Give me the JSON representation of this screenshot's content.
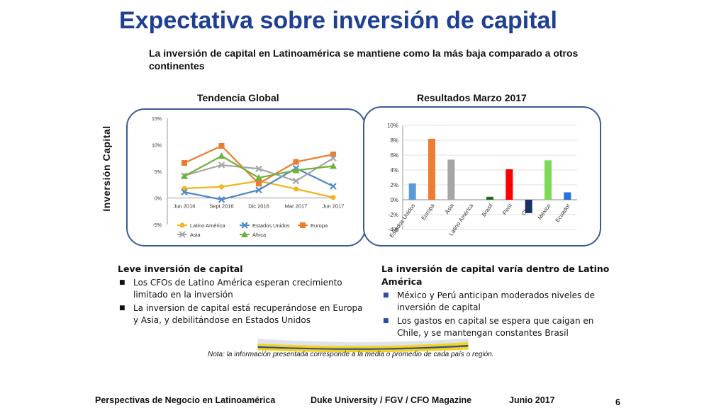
{
  "slide": {
    "title": "Expectativa sobre inversión de capital",
    "subtitle": "La inversión de capital en Latinoamérica se mantiene como la más baja comparado a otros continentes",
    "y_axis_label": "Inversión Capital",
    "note": "Nota: la información presentada corresponde a la media o promedio de cada país o región.",
    "footer": {
      "left": "Perspectivas de Negocio en Latinoamérica",
      "center": "Duke University / FGV / CFO Magazine",
      "date": "Junio 2017",
      "page": "6"
    }
  },
  "left_column": {
    "heading": "Leve inversión de capital",
    "bullets": [
      "Los CFOs de Latino América esperan crecimiento limitado en la inversión",
      "La inversion de capital está recuperándose en Europa y Asia, y debilitándose en Estados Unidos"
    ]
  },
  "right_column": {
    "heading": "La inversión de capital varía dentro de Latino América",
    "bullets": [
      "México y Perú anticipan moderados niveles de inversión de capital",
      "Los gastos en capital se espera que caigan en Chile, y se mantengan constantes Brasil"
    ]
  },
  "colors": {
    "title": "#1f3f93",
    "panel_border": "#3a5c95",
    "footer_yellow": "#f5d21c",
    "footer_blue": "#2b4f9e"
  },
  "chart_data": [
    {
      "type": "line",
      "title": "Tendencia Global",
      "categories": [
        "Jun 2016",
        "Sept 2016",
        "Dic 2016",
        "Mar 2017",
        "Jun 2017"
      ],
      "yticks": [
        "15%",
        "10%",
        "5%",
        "0%",
        "-5%"
      ],
      "ylim": [
        -5,
        15
      ],
      "legend_position": "bottom",
      "series": [
        {
          "name": "Latino América",
          "color": "#f2b51c",
          "marker": "circle",
          "values": [
            1.8,
            2.1,
            3.2,
            1.7,
            0.1
          ]
        },
        {
          "name": "Estados Unidos",
          "color": "#4c88c8",
          "marker": "x",
          "values": [
            1.1,
            -0.3,
            1.5,
            5.6,
            2.2
          ]
        },
        {
          "name": "Europa",
          "color": "#ec7c30",
          "marker": "square",
          "values": [
            6.6,
            9.8,
            2.7,
            6.8,
            8.2
          ]
        },
        {
          "name": "Asia",
          "color": "#a5a5a5",
          "marker": "x",
          "values": [
            4.2,
            6.2,
            5.5,
            3.2,
            7.5
          ]
        },
        {
          "name": "África",
          "color": "#6fb23b",
          "marker": "triangle",
          "values": [
            4.1,
            7.9,
            3.8,
            5.2,
            6.0
          ]
        }
      ]
    },
    {
      "type": "bar",
      "title": "Resultados Marzo 2017",
      "categories": [
        "Estados Unidos",
        "Europa",
        "Asia",
        "Latino América",
        "Brasil",
        "Perú",
        "Chile",
        "México",
        "Ecuador"
      ],
      "values": [
        2.2,
        8.2,
        5.4,
        0.0,
        0.4,
        4.1,
        -1.8,
        5.3,
        1.0
      ],
      "colors": [
        "#5b9bd5",
        "#ed7d31",
        "#a5a5a5",
        "#ffc000",
        "#1b6e1b",
        "#ff0000",
        "#16306b",
        "#7ed957",
        "#2e6fe0"
      ],
      "yticks": [
        "10%",
        "8%",
        "6%",
        "4%",
        "2%",
        "0%",
        "-2%",
        "-4%"
      ],
      "ylim": [
        -4,
        10
      ]
    }
  ]
}
